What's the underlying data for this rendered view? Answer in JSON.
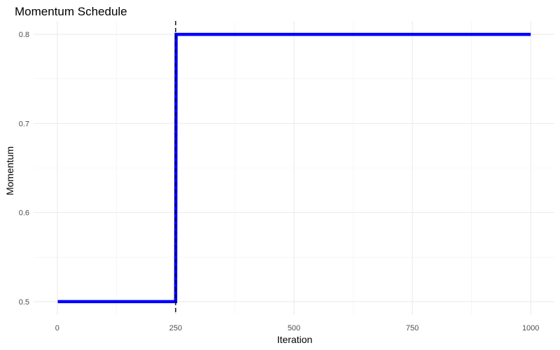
{
  "chart_data": {
    "type": "line",
    "title": "Momentum Schedule",
    "xlabel": "Iteration",
    "ylabel": "Momentum",
    "x_ticks": [
      0,
      250,
      500,
      750,
      1000
    ],
    "y_ticks": [
      0.5,
      0.6,
      0.7,
      0.8
    ],
    "x_tick_labels": [
      "0",
      "250",
      "500",
      "750",
      "1000"
    ],
    "y_tick_labels": [
      "0.5",
      "0.6",
      "0.7",
      "0.8"
    ],
    "xlim": [
      -50,
      1050
    ],
    "ylim": [
      0.485,
      0.815
    ],
    "grid": true,
    "series": [
      {
        "color": "#0000ff",
        "x": [
          1,
          250,
          251,
          1000
        ],
        "y": [
          0.5,
          0.5,
          0.8,
          0.8
        ]
      }
    ],
    "vline": {
      "x": 250,
      "style": "dashed",
      "color": "#000000"
    }
  }
}
